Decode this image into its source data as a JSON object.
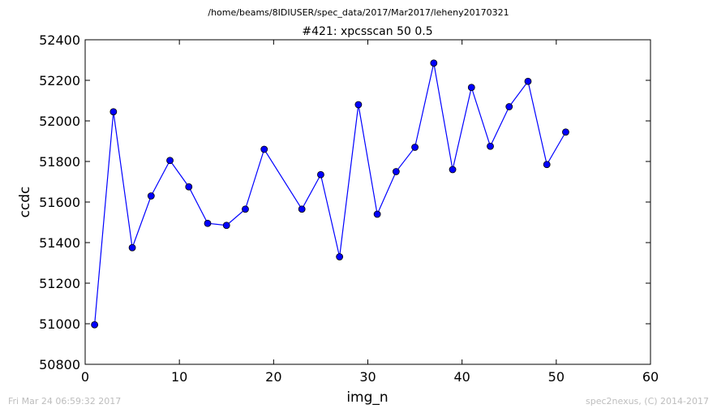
{
  "figure": {
    "suptitle": "/home/beams/8IDIUSER/spec_data/2017/Mar2017/leheny20170321",
    "footer_left": "Fri Mar 24 06:59:32 2017",
    "footer_right": "spec2nexus, (C) 2014-2017"
  },
  "chart_data": {
    "type": "line",
    "title": "#421: xpcsscan 50 0.5",
    "xlabel": "img_n",
    "ylabel": "ccdc",
    "xlim": [
      0,
      60
    ],
    "ylim": [
      50800,
      52400
    ],
    "xticks": [
      "0",
      "10",
      "20",
      "30",
      "40",
      "50",
      "60"
    ],
    "yticks": [
      "50800",
      "51000",
      "51200",
      "51400",
      "51600",
      "51800",
      "52000",
      "52200",
      "52400"
    ],
    "grid": false,
    "legend": "none",
    "series": [
      {
        "color": "#0000ff",
        "marker": "circle",
        "x": [
          1,
          3,
          5,
          7,
          9,
          11,
          13,
          15,
          17,
          19,
          23,
          25,
          27,
          29,
          31,
          33,
          35,
          37,
          39,
          41,
          43,
          45,
          47,
          49,
          51
        ],
        "y": [
          50995,
          52045,
          51375,
          51630,
          51805,
          51675,
          51495,
          51485,
          51565,
          51860,
          51565,
          51735,
          51330,
          52080,
          51540,
          51750,
          51870,
          52285,
          51760,
          52165,
          51875,
          52070,
          52195,
          51785,
          51945
        ]
      }
    ]
  }
}
